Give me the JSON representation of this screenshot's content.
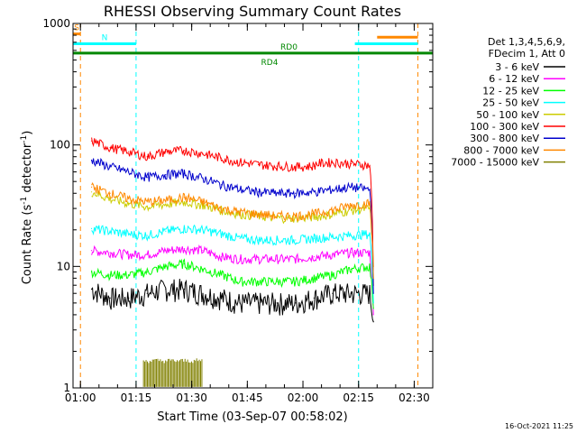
{
  "chart_data": {
    "type": "line",
    "title": "RHESSI Observing Summary Count Rates",
    "xlabel": "Start Time (03-Sep-07 00:58:02)",
    "ylabel_main": "Count Rate (s",
    "ylabel_sup1": "-1",
    "ylabel_mid": " detector",
    "ylabel_sup2": "-1",
    "ylabel_end": ")",
    "yscale": "log",
    "ylim": [
      1,
      1000
    ],
    "xlim_minutes": [
      0,
      97
    ],
    "x_ticks": [
      {
        "label": "01:00",
        "t": 2
      },
      {
        "label": "01:15",
        "t": 17
      },
      {
        "label": "01:30",
        "t": 32
      },
      {
        "label": "01:45",
        "t": 47
      },
      {
        "label": "02:00",
        "t": 62
      },
      {
        "label": "02:15",
        "t": 77
      },
      {
        "label": "02:30",
        "t": 92
      }
    ],
    "y_ticks": [
      {
        "label": "1",
        "v": 1
      },
      {
        "label": "10",
        "v": 10
      },
      {
        "label": "100",
        "v": 100
      },
      {
        "label": "1000",
        "v": 1000
      }
    ],
    "legend_title": [
      "Det 1,3,4,5,6,9,",
      "FDecim 1, Att 0"
    ],
    "series": [
      {
        "name": "3 - 6 keV",
        "color": "#000000",
        "t": [
          5,
          10,
          15,
          20,
          25,
          30,
          35,
          40,
          45,
          50,
          55,
          60,
          65,
          70,
          75,
          80,
          81
        ],
        "values": [
          6.5,
          5.5,
          5.5,
          6,
          6.5,
          6.5,
          6,
          5.5,
          5,
          5,
          5,
          5,
          5.5,
          6,
          6,
          6,
          3.5
        ]
      },
      {
        "name": "6 - 12 keV",
        "color": "#ff00ff",
        "t": [
          5,
          10,
          15,
          20,
          25,
          30,
          35,
          40,
          45,
          50,
          55,
          60,
          65,
          70,
          75,
          80,
          81
        ],
        "values": [
          13.5,
          13,
          12.5,
          12.5,
          13.5,
          14,
          13.5,
          12,
          11.5,
          11.5,
          11.5,
          11.5,
          12,
          12.5,
          13,
          13,
          4
        ]
      },
      {
        "name": "12 - 25 keV",
        "color": "#00ff00",
        "t": [
          5,
          10,
          15,
          20,
          25,
          30,
          35,
          40,
          45,
          50,
          55,
          60,
          65,
          70,
          75,
          80,
          81
        ],
        "values": [
          9,
          8.5,
          8.5,
          9,
          10,
          10.5,
          9.5,
          8.5,
          7.5,
          7.5,
          7.5,
          7.5,
          8,
          8.5,
          9.5,
          10,
          4.5
        ]
      },
      {
        "name": "25 - 50 keV",
        "color": "#00ffff",
        "t": [
          5,
          10,
          15,
          20,
          25,
          30,
          35,
          40,
          45,
          50,
          55,
          60,
          65,
          70,
          75,
          80,
          81
        ],
        "values": [
          20.5,
          19.5,
          18.5,
          18,
          19.5,
          20.5,
          20,
          18.5,
          17,
          16.5,
          16.5,
          16.5,
          17,
          17.5,
          18,
          18.5,
          5
        ]
      },
      {
        "name": "50 - 100 keV",
        "color": "#cccc00",
        "t": [
          5,
          10,
          15,
          20,
          25,
          30,
          35,
          40,
          45,
          50,
          55,
          60,
          65,
          70,
          75,
          80,
          81
        ],
        "values": [
          41,
          36,
          33,
          31,
          32.5,
          34,
          32,
          29,
          27,
          26,
          25,
          25,
          25.5,
          27,
          29,
          30,
          10
        ]
      },
      {
        "name": "100 - 300 keV",
        "color": "#ff0000",
        "t": [
          5,
          10,
          15,
          20,
          25,
          30,
          35,
          40,
          45,
          50,
          55,
          60,
          65,
          65.5,
          70,
          75,
          80,
          81
        ],
        "values": [
          108,
          95,
          88,
          80,
          88,
          90,
          85,
          78,
          72,
          69,
          67,
          66,
          67,
          70,
          72,
          70,
          68,
          7
        ]
      },
      {
        "name": "300 - 800 keV",
        "color": "#0000cc",
        "t": [
          5,
          10,
          15,
          20,
          25,
          30,
          35,
          40,
          45,
          50,
          55,
          60,
          65,
          70,
          75,
          80,
          81
        ],
        "values": [
          75,
          66,
          60,
          54,
          57,
          58,
          53,
          47,
          43,
          41,
          40,
          40,
          41,
          43,
          45,
          43,
          6
        ]
      },
      {
        "name": "800 - 7000 keV",
        "color": "#ff8800",
        "t": [
          5,
          10,
          15,
          20,
          25,
          30,
          35,
          40,
          45,
          50,
          55,
          60,
          65,
          70,
          75,
          80,
          81
        ],
        "values": [
          45,
          40,
          36,
          34,
          35,
          37,
          34,
          30,
          28,
          27,
          26,
          26,
          27,
          29,
          32,
          33,
          8
        ]
      },
      {
        "name": "7000 - 15000 keV",
        "color": "#808000",
        "t": [
          19,
          21,
          23,
          25,
          27,
          29,
          31,
          33,
          35
        ],
        "values": [
          1.6,
          1.5,
          1.6,
          1.5,
          1.6,
          1.5,
          1.6,
          1.5,
          1.6
        ]
      }
    ],
    "state_bars": [
      {
        "label": "S",
        "color": "#ff8800",
        "t0": 0,
        "t1": 2,
        "level": 820
      },
      {
        "label": "",
        "color": "#ff8800",
        "t0": 82,
        "t1": 93,
        "level": 770
      },
      {
        "label": "N",
        "color": "#00ffff",
        "t0": 0,
        "t1": 17,
        "level": 680
      },
      {
        "label": "",
        "color": "#00ffff",
        "t0": 76,
        "t1": 93,
        "level": 680
      },
      {
        "label": "RD0",
        "color": "#008800",
        "t0": 0,
        "t1": 97,
        "level": 570
      }
    ],
    "bar_labels": [
      {
        "label": "RD4",
        "t": 53,
        "level": 480
      }
    ],
    "vlines": [
      {
        "t": 2,
        "color": "#ff8800"
      },
      {
        "t": 17,
        "color": "#00ffff"
      },
      {
        "t": 77,
        "color": "#00ffff"
      },
      {
        "t": 93,
        "color": "#ff8800"
      }
    ],
    "footer_date": "16-Oct-2021 11:25"
  }
}
